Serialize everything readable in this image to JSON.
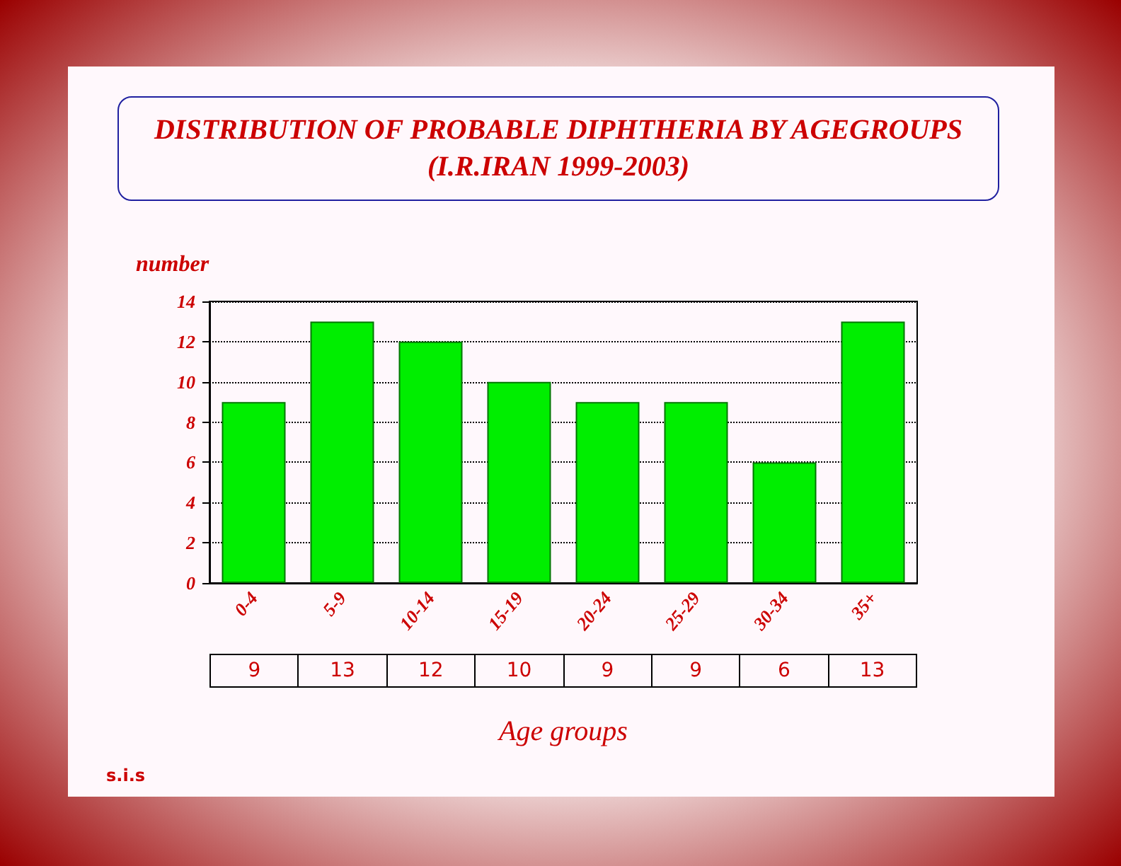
{
  "chart_data": {
    "type": "bar",
    "title": "DISTRIBUTION OF PROBABLE DIPHTHERIA BY AGEGROUPS",
    "subtitle": "(I.R.IRAN 1999-2003)",
    "xlabel": "Age groups",
    "ylabel": "number",
    "categories": [
      "0-4",
      "5-9",
      "10-14",
      "15-19",
      "20-24",
      "25-29",
      "30-34",
      "35+"
    ],
    "values": [
      9,
      13,
      12,
      10,
      9,
      9,
      6,
      13
    ],
    "color": "#00ee00",
    "ylim": [
      0,
      14
    ],
    "yticks": [
      0,
      2,
      4,
      6,
      8,
      10,
      12,
      14
    ],
    "grid": "y",
    "data_labels": true,
    "annotations": [
      "s.i.s"
    ]
  }
}
